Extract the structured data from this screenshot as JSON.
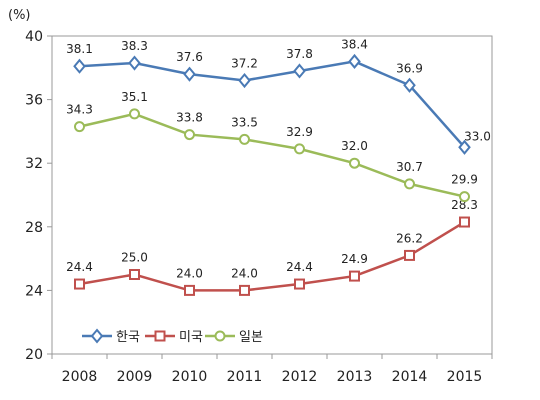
{
  "chart_data": {
    "type": "line",
    "unit_label": "(%)",
    "x": [
      "2008",
      "2009",
      "2010",
      "2011",
      "2012",
      "2013",
      "2014",
      "2015"
    ],
    "ylim": [
      20,
      40
    ],
    "yticks": [
      20,
      24,
      28,
      32,
      36,
      40
    ],
    "grid": false,
    "legend_position": "bottom-left",
    "series": [
      {
        "name": "한국",
        "color": "#4a7ab5",
        "marker": "diamond",
        "values": [
          38.1,
          38.3,
          37.6,
          37.2,
          37.8,
          38.4,
          36.9,
          33.0
        ],
        "labels": [
          "38.1",
          "38.3",
          "37.6",
          "37.2",
          "37.8",
          "38.4",
          "36.9",
          "33.0"
        ]
      },
      {
        "name": "미국",
        "color": "#c0504d",
        "marker": "square",
        "values": [
          24.4,
          25.0,
          24.0,
          24.0,
          24.4,
          24.9,
          26.2,
          28.3
        ],
        "labels": [
          "24.4",
          "25.0",
          "24.0",
          "24.0",
          "24.4",
          "24.9",
          "26.2",
          "28.3"
        ]
      },
      {
        "name": "일본",
        "color": "#9bbb59",
        "marker": "circle",
        "values": [
          34.3,
          35.1,
          33.8,
          33.5,
          32.9,
          32.0,
          30.7,
          29.9
        ],
        "labels": [
          "34.3",
          "35.1",
          "33.8",
          "33.5",
          "32.9",
          "32.0",
          "30.7",
          "29.9"
        ]
      }
    ]
  }
}
